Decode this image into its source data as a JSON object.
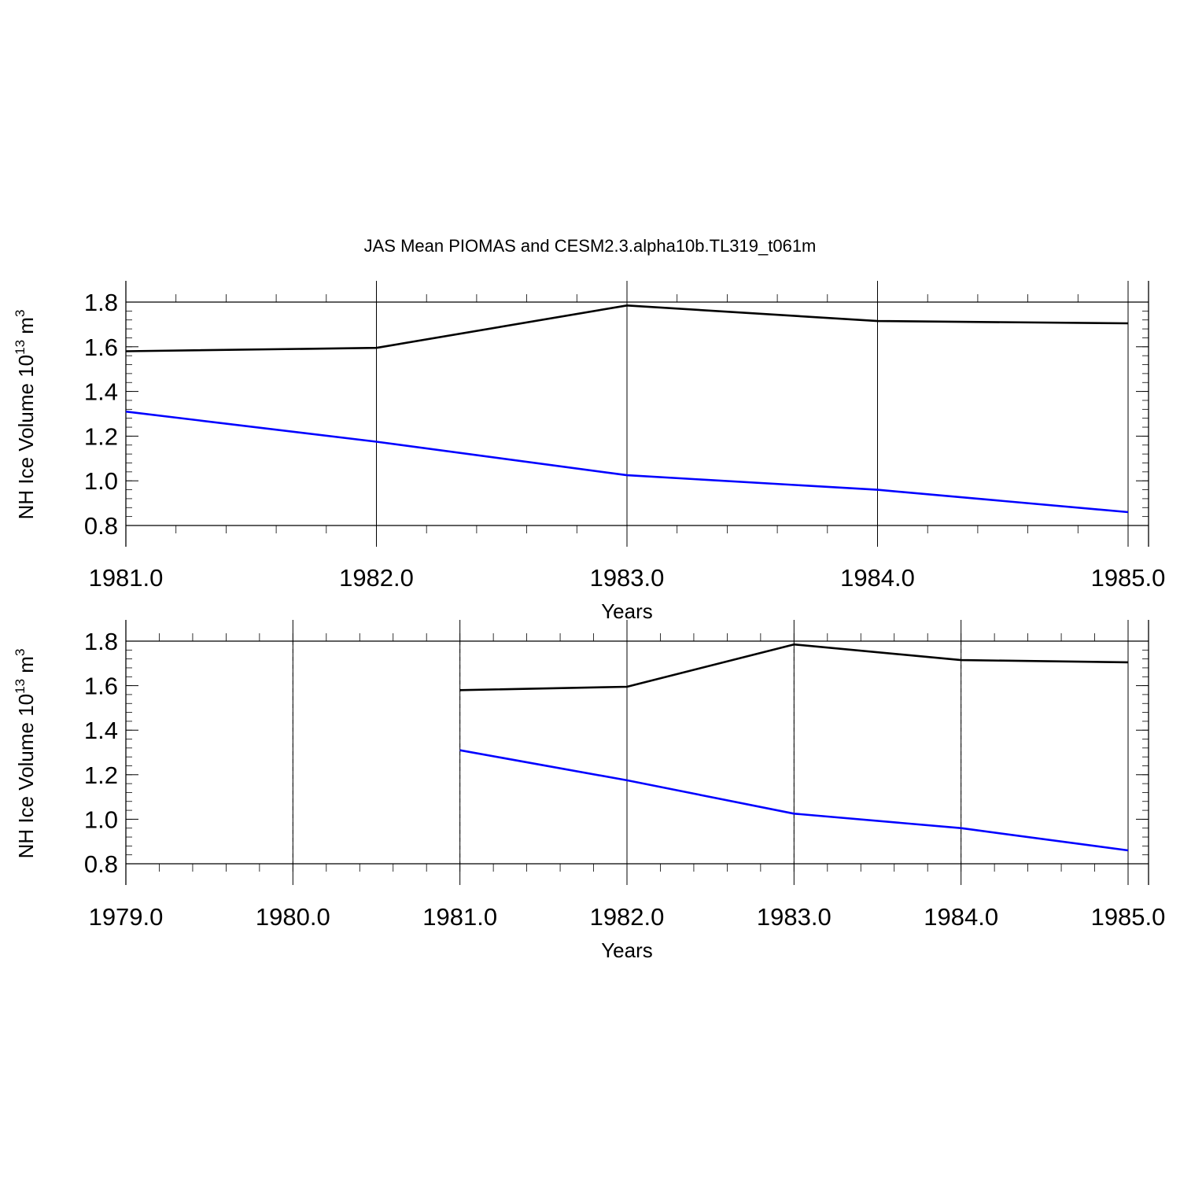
{
  "figure": {
    "title": "JAS Mean PIOMAS and CESM2.3.alpha10b.TL319_t061m"
  },
  "colors": {
    "series_black": "#000000",
    "series_blue": "#0000ff",
    "axis": "#000000",
    "grid": "#000000"
  },
  "chart_data": [
    {
      "type": "line",
      "title": "JAS Mean PIOMAS and CESM2.3.alpha10b.TL319_t061m",
      "xlabel": "Years",
      "ylabel": "NH Ice Volume 10^13 m^3",
      "ylabel_base": "NH Ice Volume 10",
      "ylabel_exp": "13",
      "ylabel_unit": " m",
      "ylabel_unit_exp": "3",
      "xlim": [
        1981.0,
        1985.0
      ],
      "ylim": [
        0.8,
        1.8
      ],
      "xticks": [
        "1981.0",
        "1982.0",
        "1983.0",
        "1984.0",
        "1985.0"
      ],
      "xtick_values": [
        1981,
        1982,
        1983,
        1984,
        1985
      ],
      "yticks": [
        "0.8",
        "1.0",
        "1.2",
        "1.4",
        "1.6",
        "1.8"
      ],
      "ytick_values": [
        0.8,
        1.0,
        1.2,
        1.4,
        1.6,
        1.8
      ],
      "grid": "vertical dashed at major x ticks",
      "series": [
        {
          "color": "#000000",
          "x": [
            1981,
            1982,
            1983,
            1984,
            1985
          ],
          "values": [
            1.58,
            1.595,
            1.785,
            1.715,
            1.705
          ]
        },
        {
          "color": "#0000ff",
          "x": [
            1981,
            1982,
            1983,
            1984,
            1985
          ],
          "values": [
            1.31,
            1.175,
            1.025,
            0.96,
            0.86
          ]
        }
      ]
    },
    {
      "type": "line",
      "xlabel": "Years",
      "ylabel": "NH Ice Volume 10^13 m^3",
      "ylabel_base": "NH Ice Volume 10",
      "ylabel_exp": "13",
      "ylabel_unit": " m",
      "ylabel_unit_exp": "3",
      "xlim": [
        1979.0,
        1985.0
      ],
      "ylim": [
        0.8,
        1.8
      ],
      "xticks": [
        "1979.0",
        "1980.0",
        "1981.0",
        "1982.0",
        "1983.0",
        "1984.0",
        "1985.0"
      ],
      "xtick_values": [
        1979,
        1980,
        1981,
        1982,
        1983,
        1984,
        1985
      ],
      "yticks": [
        "0.8",
        "1.0",
        "1.2",
        "1.4",
        "1.6",
        "1.8"
      ],
      "ytick_values": [
        0.8,
        1.0,
        1.2,
        1.4,
        1.6,
        1.8
      ],
      "grid": "vertical dashed at major x ticks",
      "series": [
        {
          "color": "#000000",
          "x": [
            1981,
            1982,
            1983,
            1984,
            1985
          ],
          "values": [
            1.58,
            1.595,
            1.785,
            1.715,
            1.705
          ]
        },
        {
          "color": "#0000ff",
          "x": [
            1981,
            1982,
            1983,
            1984,
            1985
          ],
          "values": [
            1.31,
            1.175,
            1.025,
            0.96,
            0.86
          ]
        }
      ]
    }
  ]
}
